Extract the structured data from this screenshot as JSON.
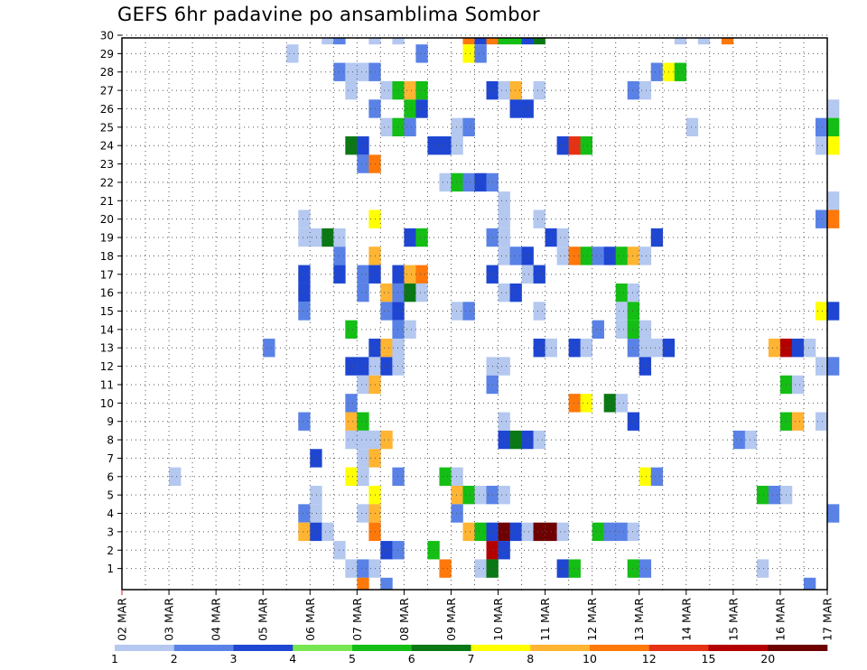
{
  "chart_data": {
    "type": "heatmap",
    "title": "GEFS 6hr padavine po ansamblima Sombor",
    "xlabel": "",
    "ylabel": "",
    "x_ticks": [
      "02 MAR",
      "03 MAR",
      "04 MAR",
      "05 MAR",
      "06 MAR",
      "07 MAR",
      "08 MAR",
      "09 MAR",
      "10 MAR",
      "11 MAR",
      "12 MAR",
      "13 MAR",
      "14 MAR",
      "15 MAR",
      "16 MAR",
      "17 MAR"
    ],
    "y_ticks": [
      "1",
      "2",
      "3",
      "4",
      "5",
      "6",
      "7",
      "8",
      "9",
      "10",
      "11",
      "12",
      "13",
      "14",
      "15",
      "16",
      "17",
      "18",
      "19",
      "20",
      "21",
      "22",
      "23",
      "24",
      "25",
      "26",
      "27",
      "28",
      "29",
      "30"
    ],
    "x_range": [
      "02 MAR 00Z",
      "17 MAR 00Z"
    ],
    "time_step_hours": 6,
    "y_range": [
      0,
      30
    ],
    "grid": true,
    "legend_placement": "bottom",
    "legend": {
      "labels": [
        "1",
        "2",
        "3",
        "4",
        "5",
        "6",
        "7",
        "8",
        "10",
        "12",
        "15",
        "20"
      ],
      "colors": [
        "#b4c8f0",
        "#5a82e6",
        "#1e46d2",
        "#78e650",
        "#14be14",
        "#0a7814",
        "#ffff00",
        "#ffb432",
        "#ff780a",
        "#e63214",
        "#b40000",
        "#6e0000"
      ]
    },
    "cells": [
      [
        30,
        "06 MAR 06Z",
        1
      ],
      [
        30,
        "06 MAR 12Z",
        2
      ],
      [
        30,
        "07 MAR 06Z",
        1
      ],
      [
        30,
        "07 MAR 18Z",
        1
      ],
      [
        30,
        "09 MAR 06Z",
        10
      ],
      [
        30,
        "09 MAR 12Z",
        3
      ],
      [
        30,
        "09 MAR 18Z",
        10
      ],
      [
        30,
        "10 MAR 00Z",
        5
      ],
      [
        30,
        "10 MAR 06Z",
        5
      ],
      [
        30,
        "10 MAR 12Z",
        3
      ],
      [
        30,
        "10 MAR 18Z",
        6
      ],
      [
        30,
        "13 MAR 18Z",
        1
      ],
      [
        30,
        "14 MAR 06Z",
        1
      ],
      [
        30,
        "14 MAR 18Z",
        10
      ],
      [
        29,
        "05 MAR 12Z",
        1
      ],
      [
        29,
        "08 MAR 06Z",
        2
      ],
      [
        29,
        "09 MAR 06Z",
        7
      ],
      [
        29,
        "09 MAR 12Z",
        2
      ],
      [
        28,
        "06 MAR 12Z",
        2
      ],
      [
        28,
        "06 MAR 18Z",
        1
      ],
      [
        28,
        "07 MAR 00Z",
        1
      ],
      [
        28,
        "07 MAR 06Z",
        2
      ],
      [
        28,
        "13 MAR 06Z",
        2
      ],
      [
        28,
        "13 MAR 12Z",
        7
      ],
      [
        28,
        "13 MAR 18Z",
        5
      ],
      [
        27,
        "06 MAR 18Z",
        1
      ],
      [
        27,
        "07 MAR 12Z",
        1
      ],
      [
        27,
        "07 MAR 18Z",
        5
      ],
      [
        27,
        "08 MAR 00Z",
        8
      ],
      [
        27,
        "08 MAR 06Z",
        5
      ],
      [
        27,
        "09 MAR 18Z",
        3
      ],
      [
        27,
        "10 MAR 00Z",
        1
      ],
      [
        27,
        "10 MAR 06Z",
        9
      ],
      [
        27,
        "10 MAR 18Z",
        1
      ],
      [
        27,
        "12 MAR 18Z",
        2
      ],
      [
        27,
        "13 MAR 00Z",
        1
      ],
      [
        26,
        "07 MAR 06Z",
        2
      ],
      [
        26,
        "08 MAR 00Z",
        5
      ],
      [
        26,
        "08 MAR 06Z",
        3
      ],
      [
        26,
        "10 MAR 06Z",
        3
      ],
      [
        26,
        "10 MAR 12Z",
        3
      ],
      [
        26,
        "17 MAR 00Z",
        1
      ],
      [
        25,
        "07 MAR 12Z",
        1
      ],
      [
        25,
        "07 MAR 18Z",
        5
      ],
      [
        25,
        "08 MAR 00Z",
        2
      ],
      [
        25,
        "09 MAR 00Z",
        1
      ],
      [
        25,
        "09 MAR 06Z",
        2
      ],
      [
        25,
        "14 MAR 00Z",
        1
      ],
      [
        25,
        "16 MAR 18Z",
        2
      ],
      [
        25,
        "17 MAR 00Z",
        5
      ],
      [
        24,
        "06 MAR 18Z",
        6
      ],
      [
        24,
        "07 MAR 00Z",
        3
      ],
      [
        24,
        "08 MAR 12Z",
        3
      ],
      [
        24,
        "08 MAR 18Z",
        3
      ],
      [
        24,
        "09 MAR 00Z",
        1
      ],
      [
        24,
        "11 MAR 06Z",
        3
      ],
      [
        24,
        "11 MAR 12Z",
        12
      ],
      [
        24,
        "11 MAR 18Z",
        5
      ],
      [
        24,
        "16 MAR 18Z",
        1
      ],
      [
        24,
        "17 MAR 00Z",
        7
      ],
      [
        23,
        "07 MAR 00Z",
        2
      ],
      [
        23,
        "07 MAR 06Z",
        10
      ],
      [
        22,
        "08 MAR 18Z",
        1
      ],
      [
        22,
        "09 MAR 00Z",
        5
      ],
      [
        22,
        "09 MAR 06Z",
        2
      ],
      [
        22,
        "09 MAR 12Z",
        3
      ],
      [
        22,
        "09 MAR 18Z",
        2
      ],
      [
        21,
        "10 MAR 00Z",
        1
      ],
      [
        21,
        "17 MAR 00Z",
        1
      ],
      [
        20,
        "05 MAR 18Z",
        1
      ],
      [
        20,
        "07 MAR 06Z",
        7
      ],
      [
        20,
        "10 MAR 00Z",
        1
      ],
      [
        20,
        "10 MAR 18Z",
        1
      ],
      [
        20,
        "16 MAR 18Z",
        2
      ],
      [
        20,
        "17 MAR 00Z",
        10
      ],
      [
        19,
        "05 MAR 18Z",
        1
      ],
      [
        19,
        "06 MAR 00Z",
        1
      ],
      [
        19,
        "06 MAR 06Z",
        6
      ],
      [
        19,
        "06 MAR 12Z",
        1
      ],
      [
        19,
        "08 MAR 00Z",
        3
      ],
      [
        19,
        "08 MAR 06Z",
        5
      ],
      [
        19,
        "09 MAR 18Z",
        2
      ],
      [
        19,
        "10 MAR 00Z",
        1
      ],
      [
        19,
        "11 MAR 00Z",
        3
      ],
      [
        19,
        "11 MAR 06Z",
        1
      ],
      [
        19,
        "13 MAR 06Z",
        3
      ],
      [
        18,
        "06 MAR 12Z",
        2
      ],
      [
        18,
        "07 MAR 06Z",
        9
      ],
      [
        18,
        "10 MAR 00Z",
        1
      ],
      [
        18,
        "10 MAR 06Z",
        2
      ],
      [
        18,
        "10 MAR 12Z",
        3
      ],
      [
        18,
        "11 MAR 06Z",
        1
      ],
      [
        18,
        "11 MAR 12Z",
        10
      ],
      [
        18,
        "11 MAR 18Z",
        5
      ],
      [
        18,
        "12 MAR 00Z",
        2
      ],
      [
        18,
        "12 MAR 06Z",
        3
      ],
      [
        18,
        "12 MAR 12Z",
        5
      ],
      [
        18,
        "12 MAR 18Z",
        8
      ],
      [
        18,
        "13 MAR 00Z",
        1
      ],
      [
        17,
        "05 MAR 18Z",
        3
      ],
      [
        17,
        "06 MAR 12Z",
        3
      ],
      [
        17,
        "07 MAR 00Z",
        2
      ],
      [
        17,
        "07 MAR 06Z",
        3
      ],
      [
        17,
        "07 MAR 18Z",
        3
      ],
      [
        17,
        "08 MAR 00Z",
        9
      ],
      [
        17,
        "08 MAR 06Z",
        10
      ],
      [
        17,
        "09 MAR 18Z",
        3
      ],
      [
        17,
        "10 MAR 12Z",
        1
      ],
      [
        17,
        "10 MAR 18Z",
        3
      ],
      [
        16,
        "05 MAR 18Z",
        3
      ],
      [
        16,
        "07 MAR 00Z",
        2
      ],
      [
        16,
        "07 MAR 12Z",
        8
      ],
      [
        16,
        "07 MAR 18Z",
        2
      ],
      [
        16,
        "08 MAR 00Z",
        6
      ],
      [
        16,
        "08 MAR 06Z",
        1
      ],
      [
        16,
        "10 MAR 00Z",
        1
      ],
      [
        16,
        "10 MAR 06Z",
        3
      ],
      [
        16,
        "12 MAR 12Z",
        5
      ],
      [
        16,
        "12 MAR 18Z",
        1
      ],
      [
        15,
        "05 MAR 18Z",
        2
      ],
      [
        15,
        "07 MAR 12Z",
        2
      ],
      [
        15,
        "07 MAR 18Z",
        3
      ],
      [
        15,
        "09 MAR 00Z",
        1
      ],
      [
        15,
        "09 MAR 06Z",
        2
      ],
      [
        15,
        "10 MAR 18Z",
        1
      ],
      [
        15,
        "12 MAR 12Z",
        1
      ],
      [
        15,
        "12 MAR 18Z",
        5
      ],
      [
        15,
        "16 MAR 18Z",
        7
      ],
      [
        15,
        "17 MAR 00Z",
        3
      ],
      [
        14,
        "06 MAR 18Z",
        5
      ],
      [
        14,
        "07 MAR 18Z",
        2
      ],
      [
        14,
        "08 MAR 00Z",
        1
      ],
      [
        14,
        "12 MAR 00Z",
        2
      ],
      [
        14,
        "12 MAR 12Z",
        1
      ],
      [
        14,
        "12 MAR 18Z",
        5
      ],
      [
        14,
        "13 MAR 00Z",
        1
      ],
      [
        13,
        "05 MAR 00Z",
        2
      ],
      [
        13,
        "07 MAR 06Z",
        3
      ],
      [
        13,
        "07 MAR 12Z",
        9
      ],
      [
        13,
        "07 MAR 18Z",
        1
      ],
      [
        13,
        "10 MAR 18Z",
        3
      ],
      [
        13,
        "11 MAR 00Z",
        1
      ],
      [
        13,
        "11 MAR 12Z",
        3
      ],
      [
        13,
        "11 MAR 18Z",
        1
      ],
      [
        13,
        "12 MAR 18Z",
        2
      ],
      [
        13,
        "13 MAR 00Z",
        1
      ],
      [
        13,
        "13 MAR 06Z",
        1
      ],
      [
        13,
        "13 MAR 12Z",
        3
      ],
      [
        13,
        "15 MAR 18Z",
        8
      ],
      [
        13,
        "16 MAR 00Z",
        15
      ],
      [
        13,
        "16 MAR 06Z",
        3
      ],
      [
        13,
        "16 MAR 12Z",
        1
      ],
      [
        12,
        "06 MAR 18Z",
        3
      ],
      [
        12,
        "07 MAR 00Z",
        3
      ],
      [
        12,
        "07 MAR 06Z",
        1
      ],
      [
        12,
        "07 MAR 12Z",
        3
      ],
      [
        12,
        "07 MAR 18Z",
        1
      ],
      [
        12,
        "09 MAR 18Z",
        1
      ],
      [
        12,
        "10 MAR 00Z",
        1
      ],
      [
        12,
        "13 MAR 00Z",
        3
      ],
      [
        12,
        "16 MAR 18Z",
        1
      ],
      [
        12,
        "17 MAR 00Z",
        2
      ],
      [
        11,
        "07 MAR 00Z",
        1
      ],
      [
        11,
        "07 MAR 06Z",
        9
      ],
      [
        11,
        "09 MAR 18Z",
        2
      ],
      [
        11,
        "16 MAR 00Z",
        5
      ],
      [
        11,
        "16 MAR 06Z",
        1
      ],
      [
        10,
        "06 MAR 18Z",
        2
      ],
      [
        10,
        "11 MAR 12Z",
        10
      ],
      [
        10,
        "11 MAR 18Z",
        7
      ],
      [
        10,
        "12 MAR 06Z",
        6
      ],
      [
        10,
        "12 MAR 12Z",
        1
      ],
      [
        9,
        "05 MAR 18Z",
        2
      ],
      [
        9,
        "06 MAR 18Z",
        9
      ],
      [
        9,
        "07 MAR 00Z",
        5
      ],
      [
        9,
        "10 MAR 00Z",
        1
      ],
      [
        9,
        "12 MAR 18Z",
        3
      ],
      [
        9,
        "16 MAR 00Z",
        5
      ],
      [
        9,
        "16 MAR 06Z",
        9
      ],
      [
        9,
        "16 MAR 18Z",
        1
      ],
      [
        8,
        "06 MAR 18Z",
        1
      ],
      [
        8,
        "07 MAR 00Z",
        1
      ],
      [
        8,
        "07 MAR 06Z",
        1
      ],
      [
        8,
        "07 MAR 12Z",
        9
      ],
      [
        8,
        "10 MAR 00Z",
        3
      ],
      [
        8,
        "10 MAR 06Z",
        6
      ],
      [
        8,
        "10 MAR 12Z",
        3
      ],
      [
        8,
        "10 MAR 18Z",
        1
      ],
      [
        8,
        "15 MAR 00Z",
        2
      ],
      [
        8,
        "15 MAR 06Z",
        1
      ],
      [
        7,
        "06 MAR 00Z",
        3
      ],
      [
        7,
        "07 MAR 00Z",
        1
      ],
      [
        7,
        "07 MAR 06Z",
        8
      ],
      [
        6,
        "03 MAR 00Z",
        1
      ],
      [
        6,
        "06 MAR 18Z",
        7
      ],
      [
        6,
        "07 MAR 00Z",
        1
      ],
      [
        6,
        "07 MAR 18Z",
        2
      ],
      [
        6,
        "08 MAR 18Z",
        5
      ],
      [
        6,
        "09 MAR 00Z",
        1
      ],
      [
        6,
        "13 MAR 00Z",
        7
      ],
      [
        6,
        "13 MAR 06Z",
        2
      ],
      [
        5,
        "06 MAR 00Z",
        1
      ],
      [
        5,
        "07 MAR 06Z",
        7
      ],
      [
        5,
        "09 MAR 00Z",
        8
      ],
      [
        5,
        "09 MAR 06Z",
        5
      ],
      [
        5,
        "09 MAR 12Z",
        1
      ],
      [
        5,
        "09 MAR 18Z",
        2
      ],
      [
        5,
        "10 MAR 00Z",
        1
      ],
      [
        5,
        "15 MAR 12Z",
        5
      ],
      [
        5,
        "15 MAR 18Z",
        2
      ],
      [
        5,
        "16 MAR 00Z",
        1
      ],
      [
        4,
        "05 MAR 18Z",
        2
      ],
      [
        4,
        "06 MAR 00Z",
        1
      ],
      [
        4,
        "07 MAR 00Z",
        1
      ],
      [
        4,
        "07 MAR 06Z",
        9
      ],
      [
        4,
        "09 MAR 00Z",
        2
      ],
      [
        4,
        "17 MAR 00Z",
        2
      ],
      [
        3,
        "05 MAR 18Z",
        9
      ],
      [
        3,
        "06 MAR 00Z",
        3
      ],
      [
        3,
        "06 MAR 06Z",
        1
      ],
      [
        3,
        "07 MAR 06Z",
        10
      ],
      [
        3,
        "09 MAR 06Z",
        8
      ],
      [
        3,
        "09 MAR 12Z",
        5
      ],
      [
        3,
        "09 MAR 18Z",
        3
      ],
      [
        3,
        "10 MAR 00Z",
        20
      ],
      [
        3,
        "10 MAR 06Z",
        3
      ],
      [
        3,
        "10 MAR 12Z",
        1
      ],
      [
        3,
        "10 MAR 18Z",
        20
      ],
      [
        3,
        "11 MAR 00Z",
        20
      ],
      [
        3,
        "11 MAR 06Z",
        1
      ],
      [
        3,
        "12 MAR 00Z",
        5
      ],
      [
        3,
        "12 MAR 06Z",
        2
      ],
      [
        3,
        "12 MAR 12Z",
        2
      ],
      [
        3,
        "12 MAR 18Z",
        1
      ],
      [
        2,
        "06 MAR 12Z",
        1
      ],
      [
        2,
        "07 MAR 12Z",
        3
      ],
      [
        2,
        "07 MAR 18Z",
        2
      ],
      [
        2,
        "08 MAR 12Z",
        5
      ],
      [
        2,
        "09 MAR 18Z",
        15
      ],
      [
        2,
        "10 MAR 00Z",
        3
      ],
      [
        1,
        "06 MAR 18Z",
        1
      ],
      [
        1,
        "07 MAR 00Z",
        2
      ],
      [
        1,
        "07 MAR 06Z",
        1
      ],
      [
        1,
        "08 MAR 18Z",
        10
      ],
      [
        1,
        "09 MAR 12Z",
        1
      ],
      [
        1,
        "09 MAR 18Z",
        6
      ],
      [
        1,
        "11 MAR 06Z",
        3
      ],
      [
        1,
        "11 MAR 12Z",
        5
      ],
      [
        1,
        "12 MAR 18Z",
        5
      ],
      [
        1,
        "13 MAR 00Z",
        2
      ],
      [
        1,
        "15 MAR 12Z",
        1
      ],
      [
        0,
        "07 MAR 00Z",
        10
      ],
      [
        0,
        "07 MAR 12Z",
        2
      ],
      [
        0,
        "16 MAR 12Z",
        2
      ]
    ]
  }
}
